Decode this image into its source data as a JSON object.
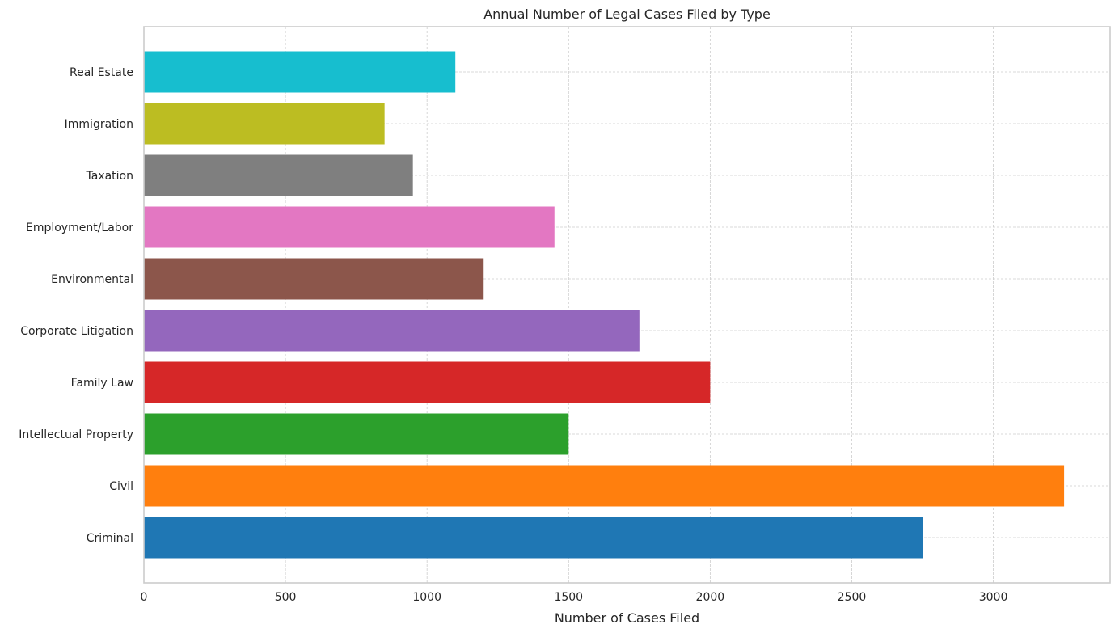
{
  "chart_data": {
    "type": "bar",
    "orientation": "horizontal",
    "title": "Annual Number of Legal Cases Filed by Type",
    "xlabel": "Number of Cases Filed",
    "ylabel": "",
    "categories": [
      "Criminal",
      "Civil",
      "Intellectual Property",
      "Family Law",
      "Corporate Litigation",
      "Environmental",
      "Employment/Labor",
      "Taxation",
      "Immigration",
      "Real Estate"
    ],
    "values": [
      2750,
      3250,
      1500,
      2000,
      1750,
      1200,
      1450,
      950,
      850,
      1100
    ],
    "colors": [
      "#1f77b4",
      "#ff7f0e",
      "#2ca02c",
      "#d62728",
      "#9467bd",
      "#8c564b",
      "#e377c2",
      "#7f7f7f",
      "#bcbd22",
      "#17becf"
    ],
    "xlim": [
      0,
      3412.5
    ],
    "xticks": [
      0,
      500,
      1000,
      1500,
      2000,
      2500,
      3000
    ],
    "grid": true,
    "legend": "none"
  }
}
